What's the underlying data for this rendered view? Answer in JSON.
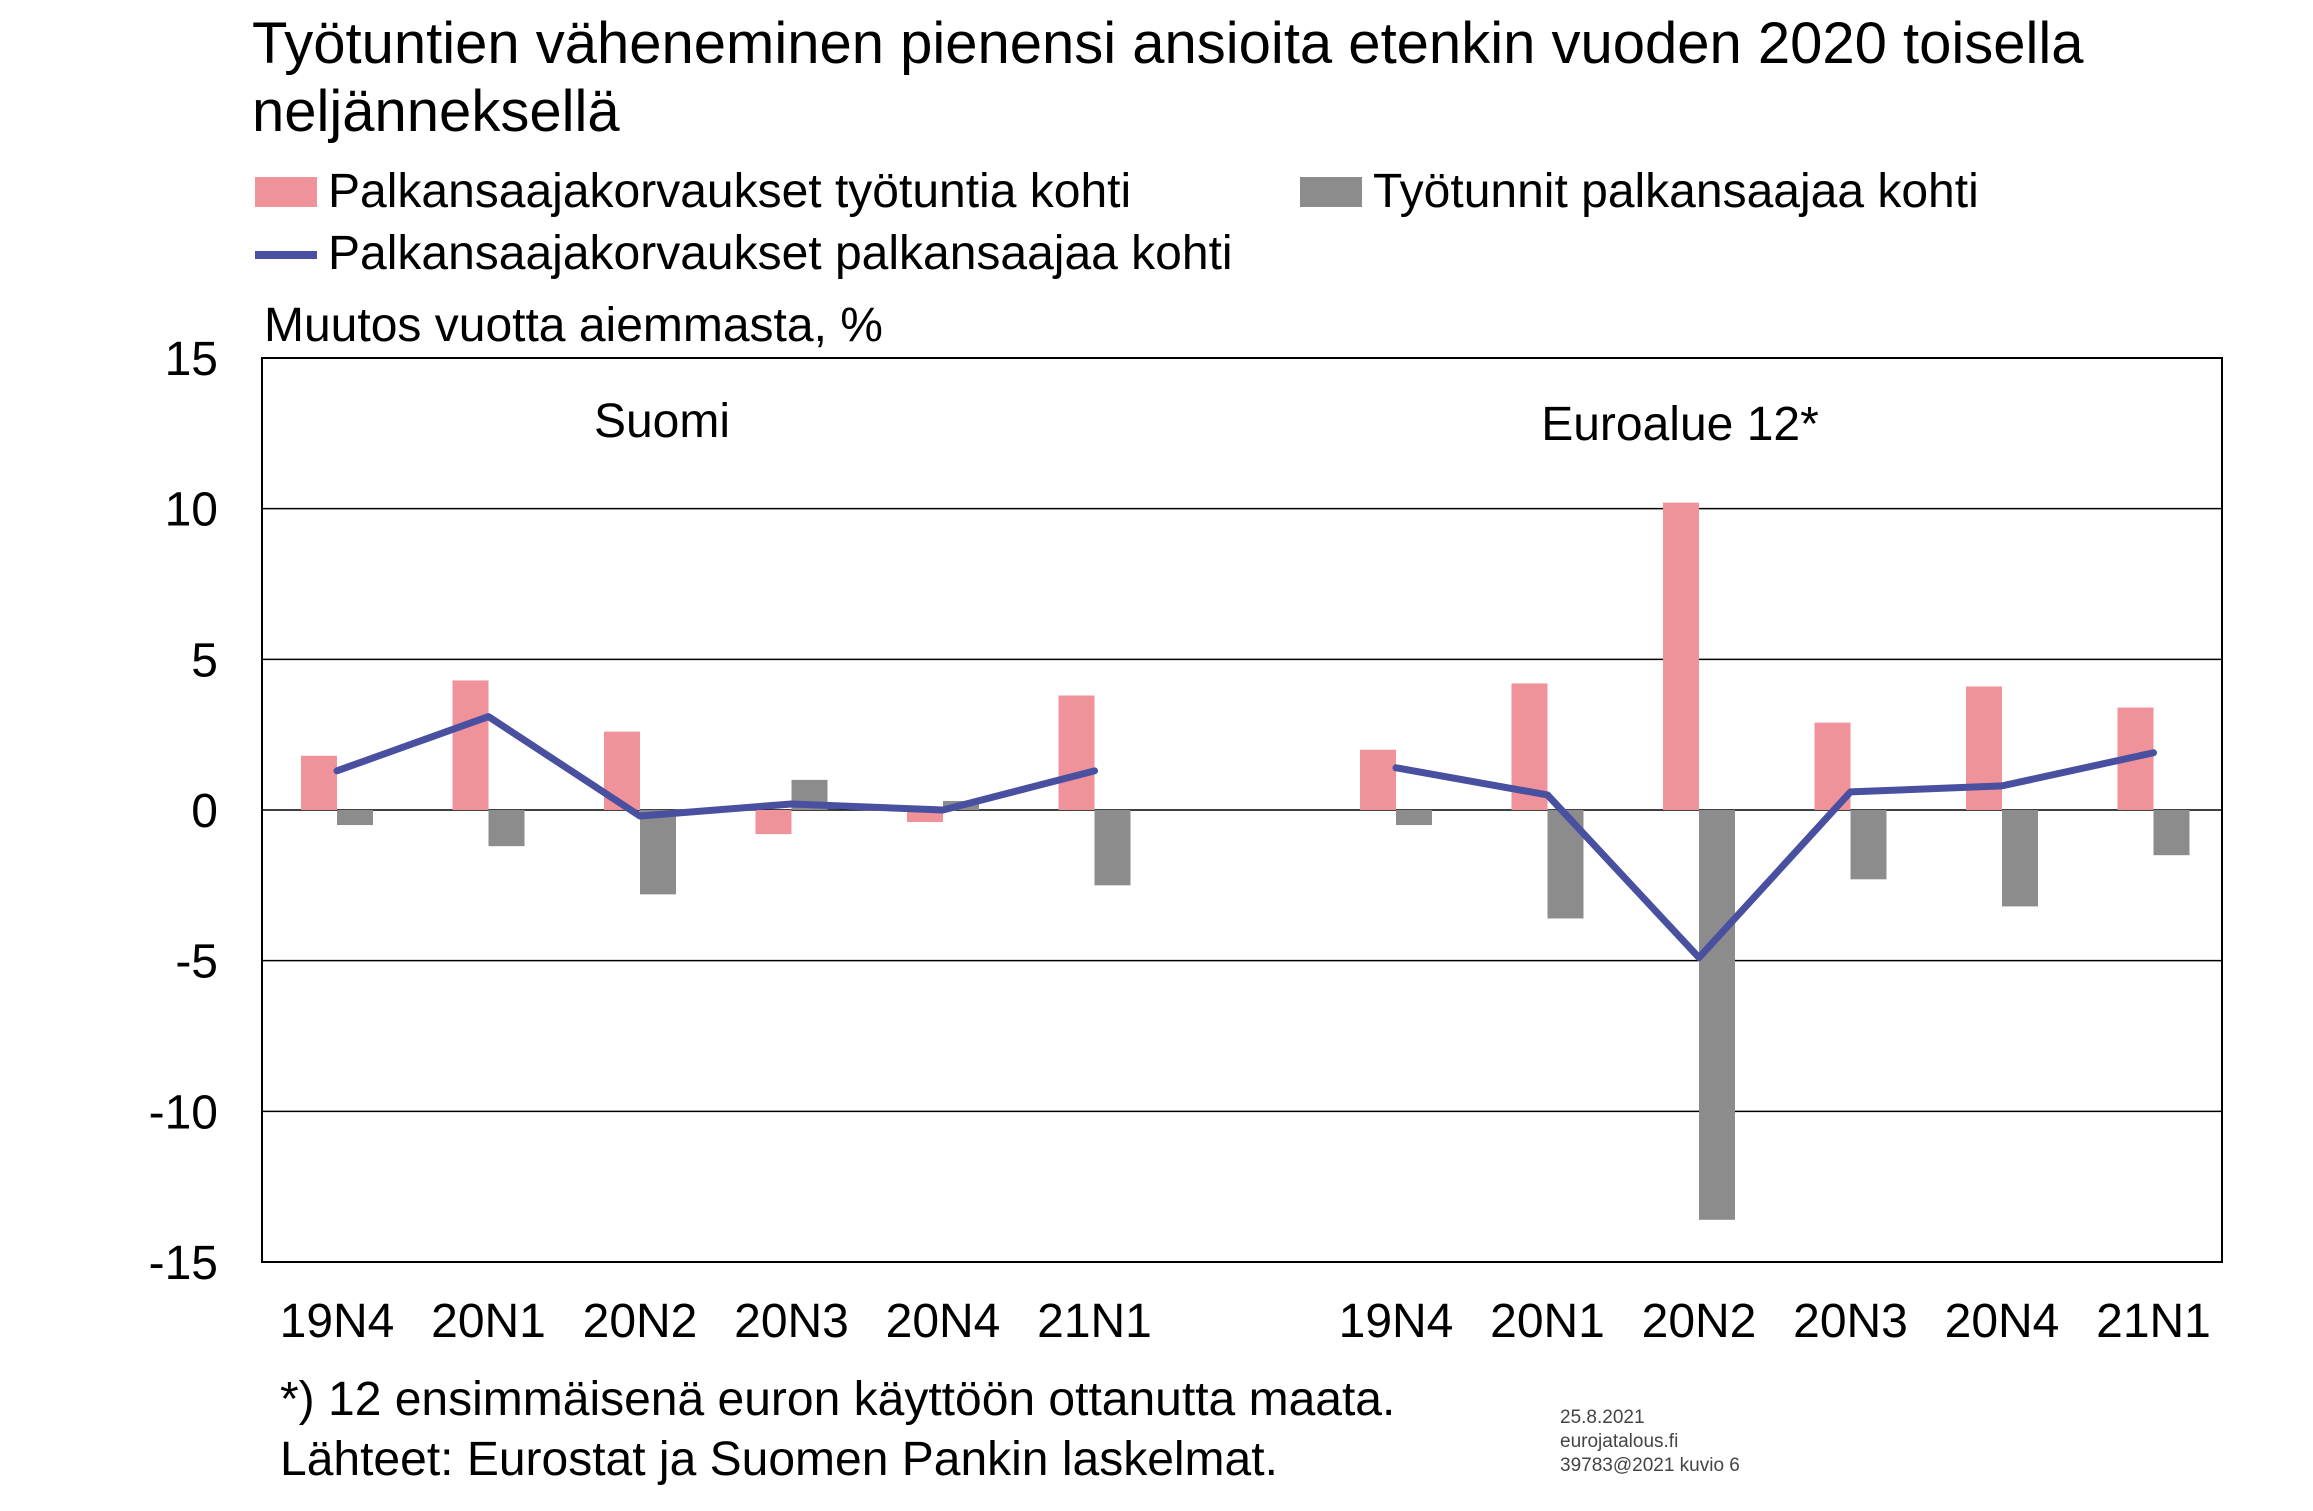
{
  "title": "Työtuntien väheneminen pienensi ansioita etenkin vuoden 2020 toisella neljänneksellä",
  "legend": [
    {
      "label": "Palkansaajakorvaukset työtuntia kohti",
      "color": "#f0929a",
      "kind": "bar"
    },
    {
      "label": "Työtunnit palkansaajaa kohti",
      "color": "#8c8c8c",
      "kind": "bar"
    },
    {
      "label": "Palkansaajakorvaukset palkansaajaa kohti",
      "color": "#4a50a0",
      "kind": "line"
    }
  ],
  "footnote1": "*) 12 ensimmäisenä euron käyttöön ottanutta maata.",
  "footnote2": "Lähteet: Eurostat ja Suomen Pankin laskelmat.",
  "meta_date": "25.8.2021",
  "meta_site": "eurojatalous.fi",
  "meta_id": "39783@2021  kuvio 6",
  "chart_data": {
    "type": "bar",
    "ylabel": "Muutos vuotta aiemmasta, %",
    "ylim": [
      -15,
      15
    ],
    "yticks": [
      15,
      10,
      5,
      0,
      -5,
      -10,
      -15
    ],
    "grid": true,
    "legend_position": "top",
    "groups": [
      {
        "name": "Suomi",
        "categories": [
          "19N4",
          "20N1",
          "20N2",
          "20N3",
          "20N4",
          "21N1"
        ],
        "series": [
          {
            "name": "Palkansaajakorvaukset työtuntia kohti",
            "values": [
              1.8,
              4.3,
              2.6,
              -0.8,
              -0.4,
              3.8
            ]
          },
          {
            "name": "Työtunnit palkansaajaa kohti",
            "values": [
              -0.5,
              -1.2,
              -2.8,
              1.0,
              0.3,
              -2.5
            ]
          },
          {
            "name": "Palkansaajakorvaukset palkansaajaa kohti",
            "values": [
              1.3,
              3.1,
              -0.2,
              0.2,
              0.0,
              1.3
            ]
          }
        ]
      },
      {
        "name": "Euroalue 12*",
        "categories": [
          "19N4",
          "20N1",
          "20N2",
          "20N3",
          "20N4",
          "21N1"
        ],
        "series": [
          {
            "name": "Palkansaajakorvaukset työtuntia kohti",
            "values": [
              2.0,
              4.2,
              10.2,
              2.9,
              4.1,
              3.4
            ]
          },
          {
            "name": "Työtunnit palkansaajaa kohti",
            "values": [
              -0.5,
              -3.6,
              -13.6,
              -2.3,
              -3.2,
              -1.5
            ]
          },
          {
            "name": "Palkansaajakorvaukset palkansaajaa kohti",
            "values": [
              1.4,
              0.5,
              -4.9,
              0.6,
              0.8,
              1.9
            ]
          }
        ]
      }
    ]
  }
}
